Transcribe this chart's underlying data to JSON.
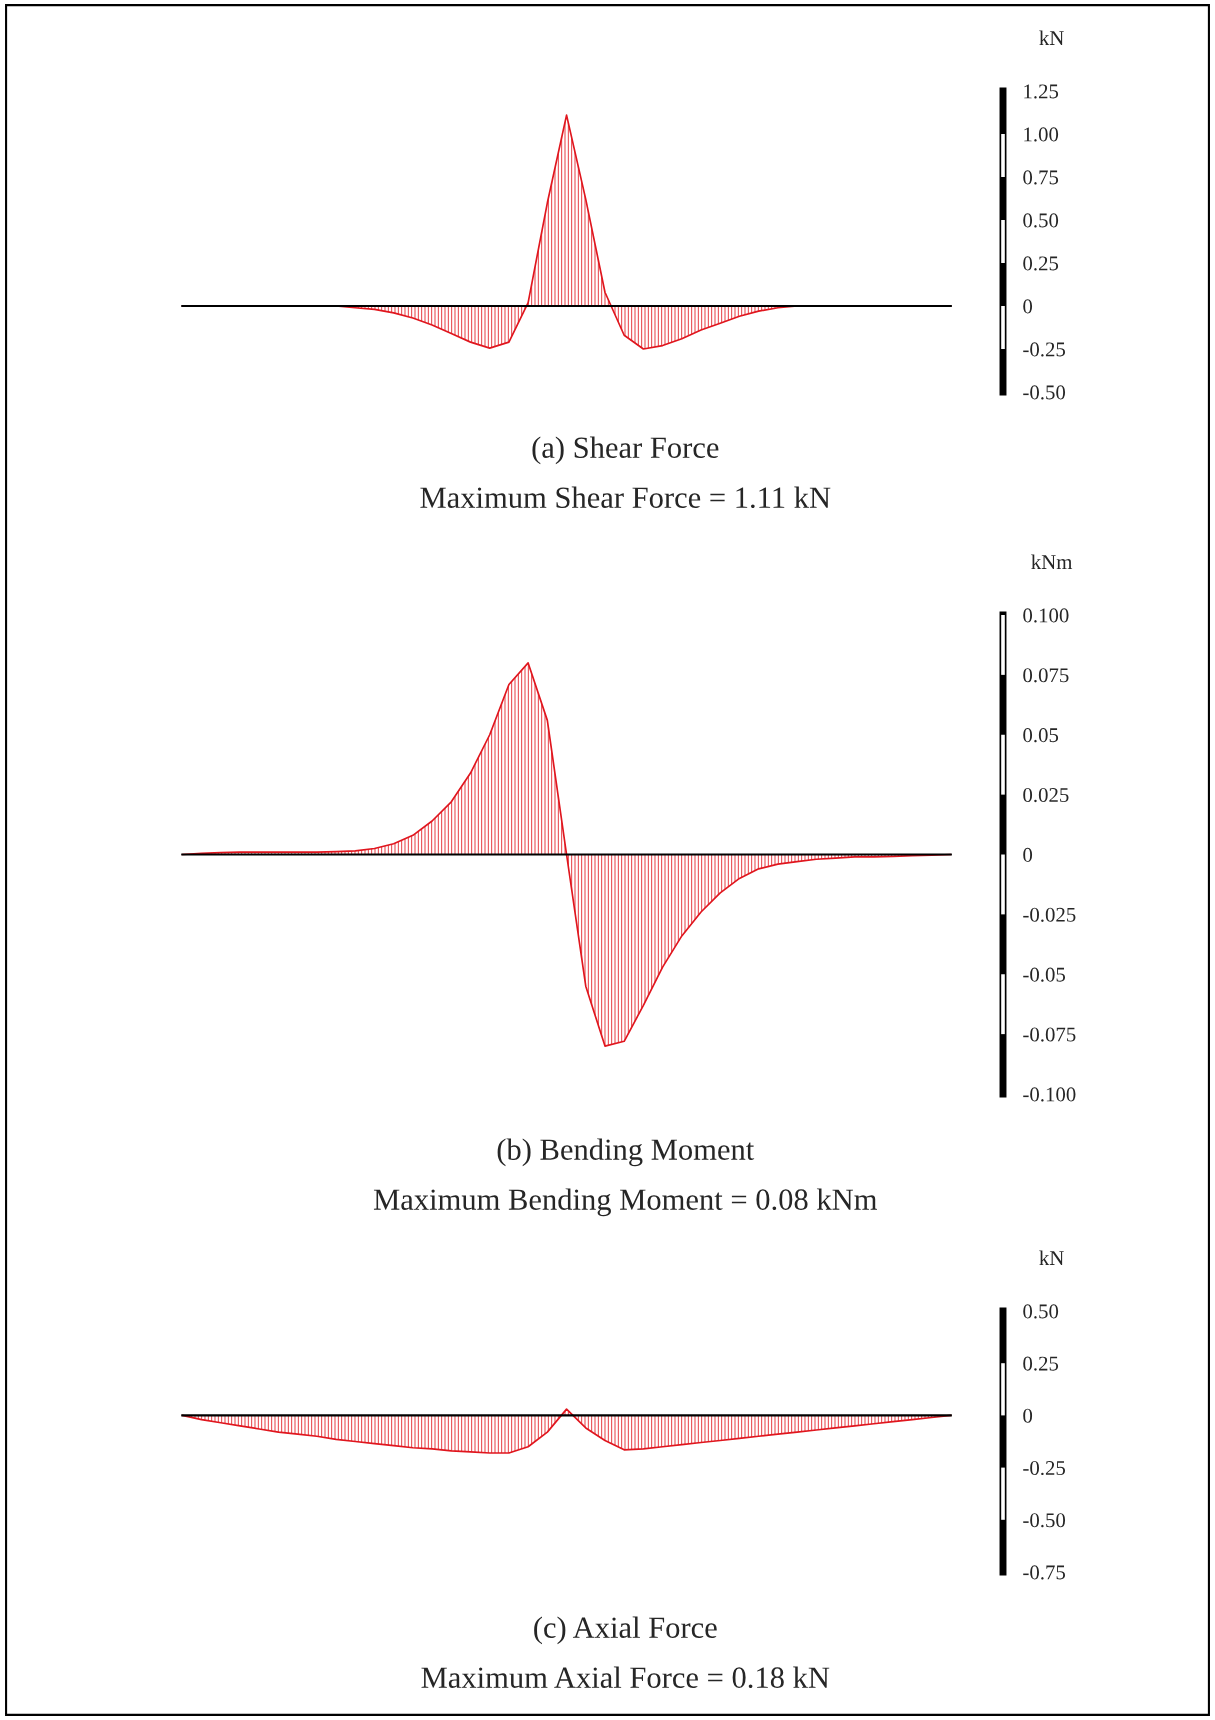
{
  "chart_data": [
    {
      "type": "area",
      "title": "(a) Shear Force",
      "subtitle": "Maximum Shear Force = 1.11 kN",
      "ylabel": "kN",
      "color": "#e0161e",
      "tick_labels": "y",
      "categories": [
        null,
        null,
        null,
        null,
        null,
        null,
        null,
        null,
        null,
        null,
        null,
        null,
        null,
        null,
        null,
        null,
        null,
        null,
        null,
        null,
        null,
        null,
        null,
        null,
        null,
        null,
        null,
        null,
        null,
        null,
        null,
        null,
        null,
        null,
        null,
        null,
        null,
        null,
        null,
        null,
        null
      ],
      "values": [
        0,
        0,
        0,
        0,
        0,
        0,
        0,
        0,
        0,
        -0.01,
        -0.02,
        -0.04,
        -0.07,
        -0.11,
        -0.16,
        -0.21,
        -0.245,
        -0.21,
        0.02,
        0.6,
        1.11,
        0.62,
        0.08,
        -0.17,
        -0.25,
        -0.23,
        -0.19,
        -0.14,
        -0.1,
        -0.06,
        -0.03,
        -0.01,
        0,
        0,
        0,
        0,
        0,
        0,
        0,
        0,
        0
      ],
      "ylim": [
        -0.5,
        1.25
      ],
      "yticks": [
        {
          "value": -0.5,
          "label": "-0.50"
        },
        -0.25,
        0,
        0.25,
        {
          "value": 0.5,
          "label": "0.50"
        },
        0.75,
        {
          "value": 1,
          "label": "1.00"
        },
        1.25
      ]
    },
    {
      "type": "area",
      "title": "(b) Bending Moment",
      "subtitle": "Maximum Bending Moment = 0.08 kNm",
      "ylabel": "kNm",
      "color": "#e0161e",
      "tick_labels": "y",
      "categories": [
        null,
        null,
        null,
        null,
        null,
        null,
        null,
        null,
        null,
        null,
        null,
        null,
        null,
        null,
        null,
        null,
        null,
        null,
        null,
        null,
        null,
        null,
        null,
        null,
        null,
        null,
        null,
        null,
        null,
        null,
        null,
        null,
        null,
        null,
        null,
        null,
        null,
        null,
        null,
        null,
        null
      ],
      "values": [
        0,
        0.0005,
        0.0008,
        0.001,
        0.001,
        0.001,
        0.001,
        0.001,
        0.0012,
        0.0015,
        0.0025,
        0.0045,
        0.008,
        0.014,
        0.022,
        0.034,
        0.05,
        0.071,
        0.08,
        0.056,
        0,
        -0.055,
        -0.08,
        -0.078,
        -0.063,
        -0.047,
        -0.034,
        -0.024,
        -0.016,
        -0.01,
        -0.006,
        -0.004,
        -0.003,
        -0.002,
        -0.0015,
        -0.001,
        -0.001,
        -0.0008,
        -0.0005,
        -0.0003,
        0
      ],
      "ylim": [
        -0.1,
        0.1
      ],
      "yticks": [
        {
          "value": -0.1,
          "label": "-0.100"
        },
        -0.075,
        -0.05,
        -0.025,
        0,
        0.025,
        0.05,
        0.075,
        {
          "value": 0.1,
          "label": "0.100"
        }
      ]
    },
    {
      "type": "area",
      "title": "(c) Axial Force",
      "subtitle": "Maximum Axial Force = 0.18 kN",
      "ylabel": "kN",
      "color": "#e0161e",
      "tick_labels": "y",
      "categories": [
        null,
        null,
        null,
        null,
        null,
        null,
        null,
        null,
        null,
        null,
        null,
        null,
        null,
        null,
        null,
        null,
        null,
        null,
        null,
        null,
        null,
        null,
        null,
        null,
        null,
        null,
        null,
        null,
        null,
        null,
        null,
        null,
        null,
        null,
        null,
        null,
        null,
        null,
        null,
        null,
        null
      ],
      "values": [
        0,
        -0.02,
        -0.035,
        -0.05,
        -0.065,
        -0.08,
        -0.09,
        -0.1,
        -0.115,
        -0.125,
        -0.135,
        -0.145,
        -0.155,
        -0.16,
        -0.17,
        -0.175,
        -0.18,
        -0.18,
        -0.15,
        -0.08,
        0.03,
        -0.06,
        -0.12,
        -0.165,
        -0.16,
        -0.15,
        -0.14,
        -0.13,
        -0.12,
        -0.11,
        -0.1,
        -0.09,
        -0.08,
        -0.07,
        -0.06,
        -0.05,
        -0.04,
        -0.03,
        -0.02,
        -0.01,
        0
      ],
      "ylim": [
        -0.75,
        0.5
      ],
      "yticks": [
        -0.75,
        {
          "value": -0.5,
          "label": "-0.50"
        },
        -0.25,
        0,
        0.25,
        {
          "value": 0.5,
          "label": "0.50"
        }
      ]
    }
  ]
}
